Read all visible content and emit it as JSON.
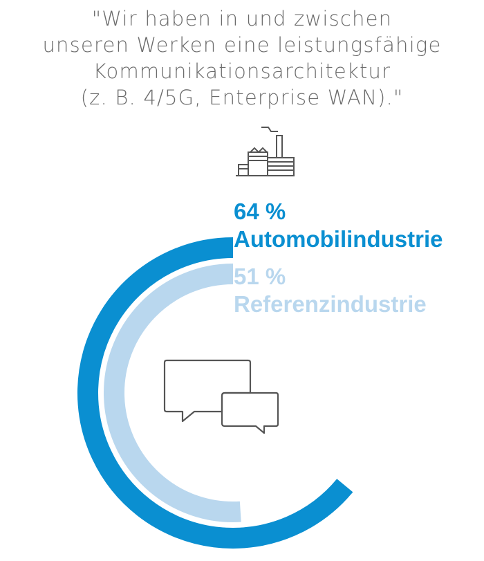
{
  "quote": {
    "lines": [
      "\"Wir haben in und zwischen",
      "unseren Werken eine leistungsfähige",
      "Kommunikationsarchitektur",
      "(z. B. 4/5G, Enterprise WAN).\""
    ]
  },
  "icons": {
    "top": "factory-icon",
    "center": "chat-bubbles-icon"
  },
  "chart_data": {
    "type": "radial-bar",
    "unit": "%",
    "series": [
      {
        "name": "Automobilindustrie",
        "value": 64,
        "value_label": "64 %",
        "color": "#0a8fd1"
      },
      {
        "name": "Referenzindustrie",
        "value": 51,
        "value_label": "51 %",
        "color": "#b9d7ee"
      }
    ]
  }
}
